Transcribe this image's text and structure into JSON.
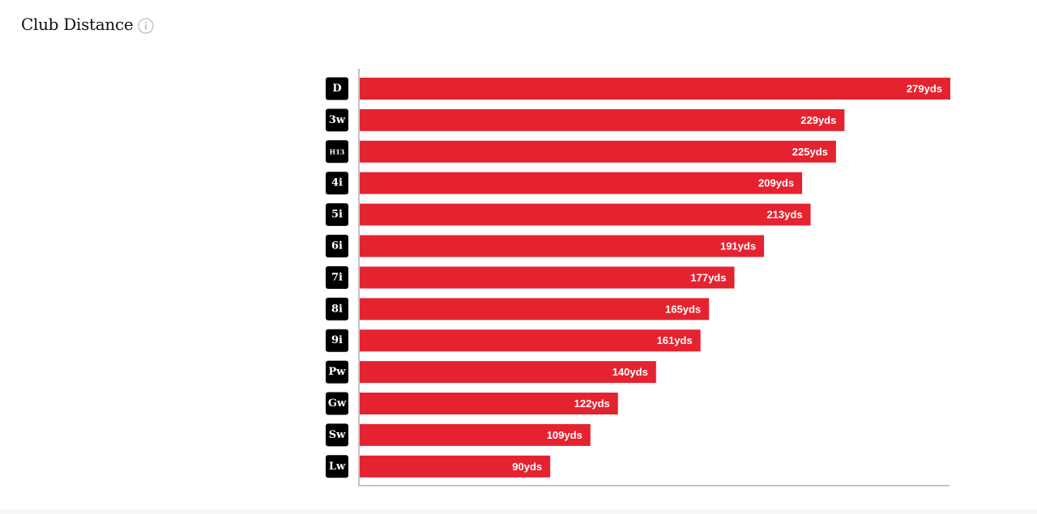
{
  "header": {
    "title": "Club Distance",
    "info_icon": "info-icon"
  },
  "colors": {
    "bar": "#e52330",
    "badge_bg": "#000000",
    "badge_text": "#ffffff",
    "axis": "#888888"
  },
  "chart_data": {
    "type": "bar",
    "orientation": "horizontal",
    "title": "Club Distance",
    "categories": [
      "D",
      "3w",
      "H13",
      "4i",
      "5i",
      "6i",
      "7i",
      "8i",
      "9i",
      "Pw",
      "Gw",
      "Sw",
      "Lw"
    ],
    "values": [
      279,
      229,
      225,
      209,
      213,
      191,
      177,
      165,
      161,
      140,
      122,
      109,
      90
    ],
    "value_suffix": "yds",
    "xlim": [
      0,
      279
    ],
    "grid": false,
    "legend": "none"
  }
}
